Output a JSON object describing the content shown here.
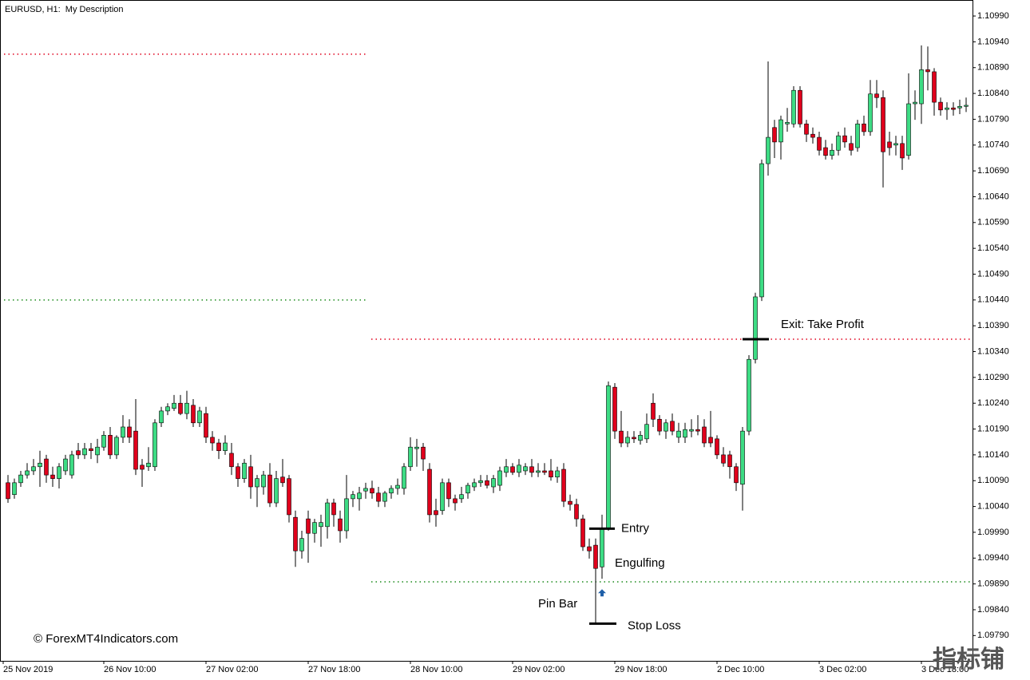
{
  "chart_data": {
    "type": "candlestick",
    "title": "EURUSD, H1:  My Description",
    "categories": [
      "25 Nov 2019",
      null,
      null,
      null,
      null,
      null,
      null,
      null,
      null,
      null,
      null,
      null,
      null,
      null,
      null,
      "26 Nov 10:00",
      null,
      null,
      null,
      null,
      null,
      null,
      null,
      null,
      null,
      null,
      null,
      null,
      null,
      null,
      null,
      "27 Nov 02:00",
      null,
      null,
      null,
      null,
      null,
      null,
      null,
      null,
      null,
      null,
      null,
      null,
      null,
      null,
      null,
      "27 Nov 18:00",
      null,
      null,
      null,
      null,
      null,
      null,
      null,
      null,
      null,
      null,
      null,
      null,
      null,
      null,
      null,
      "28 Nov 10:00",
      null,
      null,
      null,
      null,
      null,
      null,
      null,
      null,
      null,
      null,
      null,
      null,
      null,
      null,
      null,
      "29 Nov 02:00",
      null,
      null,
      null,
      null,
      null,
      null,
      null,
      null,
      null,
      null,
      null,
      null,
      null,
      null,
      null,
      "29 Nov 18:00",
      null,
      null,
      null,
      null,
      null,
      null,
      null,
      null,
      null,
      null,
      null,
      null,
      null,
      null,
      null,
      "2 Dec 10:00",
      null,
      null,
      null,
      null,
      null,
      null,
      null,
      null,
      null,
      null,
      null,
      null,
      null,
      null,
      null,
      "3 Dec 02:00",
      null,
      null,
      null,
      null,
      null,
      null,
      null,
      null,
      null,
      null,
      null,
      null,
      null,
      null,
      null,
      "3 Dec 18:00",
      null,
      null,
      null,
      null,
      null,
      null,
      null
    ],
    "open": [
      1.10086,
      1.10063,
      1.10086,
      1.10101,
      1.10109,
      1.10117,
      1.10132,
      1.10101,
      1.10094,
      1.10109,
      1.10101,
      1.10148,
      1.1014,
      1.10152,
      1.1014,
      1.10155,
      1.10178,
      1.1014,
      1.10174,
      1.10194,
      1.10186,
      1.1012,
      1.10117,
      1.10117,
      1.10202,
      1.10225,
      1.1023,
      1.1024,
      1.1022,
      1.10236,
      1.10202,
      1.1022,
      1.10174,
      1.10163,
      1.10148,
      1.10143,
      1.10117,
      1.10094,
      1.10117,
      1.10078,
      1.10078,
      1.10101,
      1.10047,
      1.10097,
      1.10094,
      1.10019,
      1.09954,
      1.10016,
      1.09988,
      1.10001,
      1.10001,
      1.10047,
      1.10016,
      1.09993,
      1.10055,
      1.10055,
      1.1007,
      1.10075,
      1.10066,
      1.1005,
      1.10066,
      1.10075,
      1.10075,
      1.10117,
      1.10152,
      1.10155,
      1.10112,
      1.10032,
      1.10032,
      1.10086,
      1.10055,
      1.10055,
      1.10066,
      1.10078,
      1.10086,
      1.1009,
      1.10078,
      1.10081,
      1.10106,
      1.10117,
      1.10106,
      1.10109,
      1.10117,
      1.10106,
      1.10109,
      1.10109,
      1.10097,
      1.10112,
      1.1005,
      1.10044,
      1.10016,
      1.09962,
      1.09965,
      1.09923,
      1.09998,
      1.10271,
      1.10186,
      1.10163,
      1.10174,
      1.10168,
      1.10171,
      1.1024,
      1.10209,
      1.10186,
      1.10205,
      1.10174,
      1.10174,
      1.10186,
      1.10189,
      1.10194,
      1.10174,
      1.10171,
      1.1014,
      1.1014,
      1.10117,
      1.10083,
      1.10186,
      1.10325,
      1.10446,
      1.10704,
      1.10774,
      1.10746,
      1.10781,
      1.10781,
      1.10846,
      1.10781,
      1.10761,
      1.10755,
      1.10735,
      1.1072,
      1.1073,
      1.10758,
      1.10743,
      1.10735,
      1.10781,
      1.10766,
      1.10839,
      1.10832,
      1.10746,
      1.1074,
      1.10743,
      1.1072,
      1.1082,
      1.1082,
      1.10886,
      1.10882,
      1.10823,
      1.10809,
      1.10812,
      1.10812,
      1.10815
    ],
    "high": [
      1.10101,
      1.10094,
      1.10109,
      1.10124,
      1.10132,
      1.10148,
      1.1014,
      1.10117,
      1.10124,
      1.1014,
      1.10148,
      1.10163,
      1.10163,
      1.10163,
      1.10171,
      1.10186,
      1.10194,
      1.10178,
      1.10217,
      1.10209,
      1.10248,
      1.10132,
      1.10155,
      1.10209,
      1.10233,
      1.1024,
      1.10256,
      1.10256,
      1.10264,
      1.10248,
      1.10233,
      1.10233,
      1.10186,
      1.10171,
      1.10178,
      1.10163,
      1.10124,
      1.10132,
      1.1014,
      1.10101,
      1.10109,
      1.10124,
      1.10109,
      1.10132,
      1.10101,
      1.10032,
      1.09993,
      1.10032,
      1.10016,
      1.10024,
      1.10055,
      1.10055,
      1.10032,
      1.10101,
      1.1007,
      1.10078,
      1.10086,
      1.1009,
      1.10078,
      1.1007,
      1.10081,
      1.10094,
      1.10124,
      1.10174,
      1.10171,
      1.10163,
      1.10124,
      1.10055,
      1.10094,
      1.10094,
      1.10063,
      1.10078,
      1.10086,
      1.10094,
      1.10101,
      1.10101,
      1.10101,
      1.10117,
      1.10132,
      1.10124,
      1.10132,
      1.10124,
      1.10132,
      1.10124,
      1.10124,
      1.10132,
      1.10117,
      1.10124,
      1.10063,
      1.10055,
      1.10024,
      1.09978,
      1.09978,
      1.10024,
      1.10282,
      1.10279,
      1.10225,
      1.10186,
      1.10186,
      1.10186,
      1.1022,
      1.10259,
      1.10217,
      1.10209,
      1.1022,
      1.10202,
      1.10202,
      1.10209,
      1.10217,
      1.10209,
      1.10225,
      1.10178,
      1.10155,
      1.10148,
      1.10124,
      1.10194,
      1.10333,
      1.10454,
      1.10712,
      1.10902,
      1.10789,
      1.10797,
      1.10812,
      1.10854,
      1.10854,
      1.10789,
      1.10774,
      1.10766,
      1.1075,
      1.10743,
      1.10766,
      1.10774,
      1.10758,
      1.10789,
      1.10797,
      1.10866,
      1.10866,
      1.10846,
      1.10766,
      1.10758,
      1.10758,
      1.10879,
      1.10846,
      1.10933,
      1.10931,
      1.10889,
      1.10832,
      1.10823,
      1.10823,
      1.10828,
      1.10832
    ],
    "low": [
      1.10047,
      1.10055,
      1.10078,
      1.10094,
      1.10101,
      1.10078,
      1.10086,
      1.10078,
      1.10075,
      1.10101,
      1.10094,
      1.10132,
      1.10132,
      1.10132,
      1.10124,
      1.10148,
      1.10132,
      1.10132,
      1.10163,
      1.10163,
      1.10101,
      1.10078,
      1.10109,
      1.10109,
      1.10194,
      1.10217,
      1.10225,
      1.10217,
      1.10209,
      1.10194,
      1.10194,
      1.10163,
      1.10148,
      1.10132,
      1.1014,
      1.10101,
      1.10078,
      1.10086,
      1.10055,
      1.10039,
      1.10063,
      1.10039,
      1.10039,
      1.10078,
      1.10009,
      1.09923,
      1.09939,
      1.09931,
      1.0997,
      1.09962,
      1.09978,
      1.10001,
      1.0997,
      1.09978,
      1.10039,
      1.10032,
      1.10055,
      1.10055,
      1.10039,
      1.10039,
      1.10055,
      1.10063,
      1.10063,
      1.10109,
      1.10117,
      1.10109,
      1.10009,
      1.10001,
      1.10024,
      1.10039,
      1.10032,
      1.10047,
      1.10055,
      1.1007,
      1.10078,
      1.10075,
      1.10066,
      1.1007,
      1.10097,
      1.10101,
      1.10097,
      1.10101,
      1.10097,
      1.10097,
      1.10101,
      1.1009,
      1.10086,
      1.10039,
      1.10032,
      1.10001,
      1.09954,
      1.09939,
      1.09815,
      1.099,
      1.09993,
      1.10171,
      1.10155,
      1.10155,
      1.10163,
      1.1016,
      1.10163,
      1.10194,
      1.10178,
      1.10171,
      1.10178,
      1.10163,
      1.10163,
      1.10174,
      1.10178,
      1.10155,
      1.10155,
      1.10132,
      1.10117,
      1.10094,
      1.1007,
      1.10032,
      1.10178,
      1.10317,
      1.10438,
      1.10681,
      1.10715,
      1.10712,
      1.10766,
      1.10774,
      1.10774,
      1.10746,
      1.10743,
      1.1072,
      1.10712,
      1.10712,
      1.1072,
      1.10735,
      1.1072,
      1.10727,
      1.10758,
      1.10758,
      1.10812,
      1.10658,
      1.1072,
      1.1072,
      1.10692,
      1.10712,
      1.10789,
      1.10781,
      1.10846,
      1.10797,
      1.10797,
      1.10789,
      1.10797,
      1.108,
      1.10804
    ],
    "close": [
      1.10055,
      1.10086,
      1.10101,
      1.10109,
      1.10117,
      1.10124,
      1.10101,
      1.10094,
      1.10117,
      1.10132,
      1.1014,
      1.1014,
      1.10152,
      1.10148,
      1.10155,
      1.10178,
      1.1014,
      1.10174,
      1.10194,
      1.10174,
      1.10112,
      1.10112,
      1.10124,
      1.10202,
      1.10225,
      1.10233,
      1.1024,
      1.1022,
      1.1024,
      1.10202,
      1.10225,
      1.10174,
      1.10163,
      1.10148,
      1.10163,
      1.10117,
      1.10094,
      1.10124,
      1.10078,
      1.10094,
      1.10101,
      1.10047,
      1.10094,
      1.10086,
      1.10024,
      1.09954,
      1.09978,
      1.09988,
      1.10009,
      1.10009,
      1.10047,
      1.10024,
      1.09993,
      1.10055,
      1.10063,
      1.10066,
      1.10075,
      1.10066,
      1.1005,
      1.10066,
      1.10075,
      1.10081,
      1.10117,
      1.10155,
      1.10155,
      1.10132,
      1.10024,
      1.10024,
      1.10086,
      1.10055,
      1.10047,
      1.10063,
      1.10081,
      1.10086,
      1.1009,
      1.10081,
      1.10094,
      1.10109,
      1.10117,
      1.10106,
      1.1012,
      1.10117,
      1.10106,
      1.10109,
      1.10106,
      1.10097,
      1.10109,
      1.1005,
      1.10044,
      1.10016,
      1.09962,
      1.09954,
      1.0992,
      1.09998,
      1.10274,
      1.10186,
      1.10163,
      1.10174,
      1.10171,
      1.10178,
      1.10199,
      1.10209,
      1.10186,
      1.10202,
      1.10186,
      1.10186,
      1.10189,
      1.10189,
      1.10186,
      1.10163,
      1.10163,
      1.1014,
      1.10124,
      1.10117,
      1.10086,
      1.10186,
      1.10325,
      1.10446,
      1.10704,
      1.10755,
      1.10746,
      1.10789,
      1.10784,
      1.10846,
      1.10781,
      1.10761,
      1.10755,
      1.1073,
      1.1072,
      1.1073,
      1.10758,
      1.10746,
      1.1073,
      1.10781,
      1.10766,
      1.10839,
      1.10832,
      1.10727,
      1.10735,
      1.10743,
      1.10715,
      1.1082,
      1.10823,
      1.10886,
      1.10882,
      1.10823,
      1.10808,
      1.10812,
      1.10809,
      1.10815,
      1.10817
    ],
    "up_color": "#3ddc84",
    "down_color": "#e0001c",
    "ylim": [
      1.09741,
      1.11021
    ],
    "yticks": [
      {
        "value": 1.1099,
        "label": "1.10990"
      },
      {
        "value": 1.1094,
        "label": "1.10940"
      },
      {
        "value": 1.1089,
        "label": "1.10890"
      },
      {
        "value": 1.1084,
        "label": "1.10840"
      },
      {
        "value": 1.1079,
        "label": "1.10790"
      },
      {
        "value": 1.1074,
        "label": "1.10740"
      },
      {
        "value": 1.1069,
        "label": "1.10690"
      },
      {
        "value": 1.1064,
        "label": "1.10640"
      },
      {
        "value": 1.1059,
        "label": "1.10590"
      },
      {
        "value": 1.1054,
        "label": "1.10540"
      },
      {
        "value": 1.1049,
        "label": "1.10490"
      },
      {
        "value": 1.1044,
        "label": "1.10440"
      },
      {
        "value": 1.1039,
        "label": "1.10390"
      },
      {
        "value": 1.1034,
        "label": "1.10340"
      },
      {
        "value": 1.1029,
        "label": "1.10290"
      },
      {
        "value": 1.1024,
        "label": "1.10240"
      },
      {
        "value": 1.1019,
        "label": "1.10190"
      },
      {
        "value": 1.1014,
        "label": "1.10140"
      },
      {
        "value": 1.1009,
        "label": "1.10090"
      },
      {
        "value": 1.1004,
        "label": "1.10040"
      },
      {
        "value": 1.0999,
        "label": "1.09990"
      },
      {
        "value": 1.0994,
        "label": "1.09940"
      },
      {
        "value": 1.0989,
        "label": "1.09890"
      },
      {
        "value": 1.0984,
        "label": "1.09840"
      },
      {
        "value": 1.0979,
        "label": "1.09790"
      }
    ],
    "grid": false,
    "levels": [
      {
        "value": 1.10916,
        "color": "#e0001c"
      },
      {
        "value": 1.1044,
        "color": "#1a8a1a"
      },
      {
        "value": 1.10364,
        "color": "#e0001c"
      },
      {
        "value": 1.09894,
        "color": "#1a8a1a"
      }
    ],
    "annotations": [
      {
        "text": "Exit: Take Profit",
        "value": 1.10364
      },
      {
        "text": "Entry",
        "value": 1.09997
      },
      {
        "text": "Stop Loss",
        "value": 1.09813
      }
    ],
    "notes": [
      "Engulfing",
      "Pin Bar"
    ],
    "signal": {
      "value": 1.09872,
      "color": "#1f5fa8"
    },
    "credit": "© ForexMT4Indicators.com",
    "watermark": "指标铺"
  }
}
